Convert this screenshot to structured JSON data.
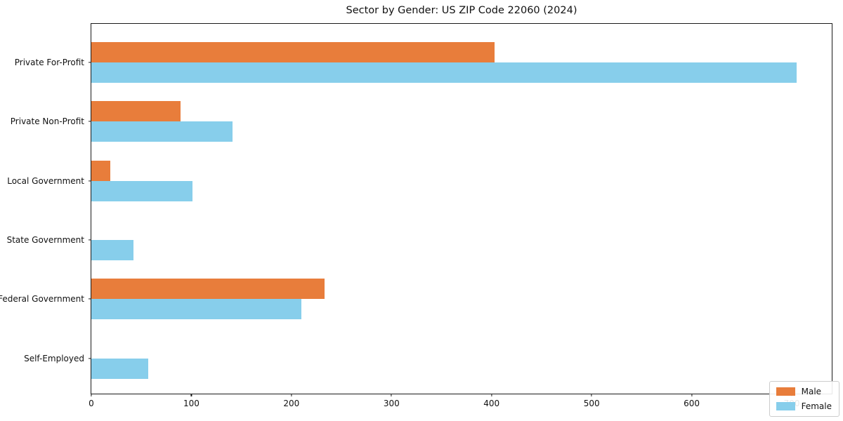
{
  "chart_data": {
    "type": "bar",
    "orientation": "horizontal",
    "title": "Sector by Gender: US ZIP Code 22060 (2024)",
    "categories": [
      "Private For-Profit",
      "Private Non-Profit",
      "Local Government",
      "State Government",
      "Federal Government",
      "Self-Employed"
    ],
    "series": [
      {
        "name": "Male",
        "color": "#E87D3B",
        "values": [
          403,
          89,
          19,
          0,
          233,
          0
        ]
      },
      {
        "name": "Female",
        "color": "#87CEEB",
        "values": [
          705,
          141,
          101,
          42,
          210,
          57
        ]
      }
    ],
    "xlabel": "",
    "ylabel": "",
    "xlim": [
      0,
      740
    ],
    "xticks": [
      0,
      100,
      200,
      300,
      400,
      500,
      600,
      700
    ],
    "grid": false,
    "legend_position": "lower right",
    "bar_arrangement": "male bar directly above female bar in each category group"
  }
}
